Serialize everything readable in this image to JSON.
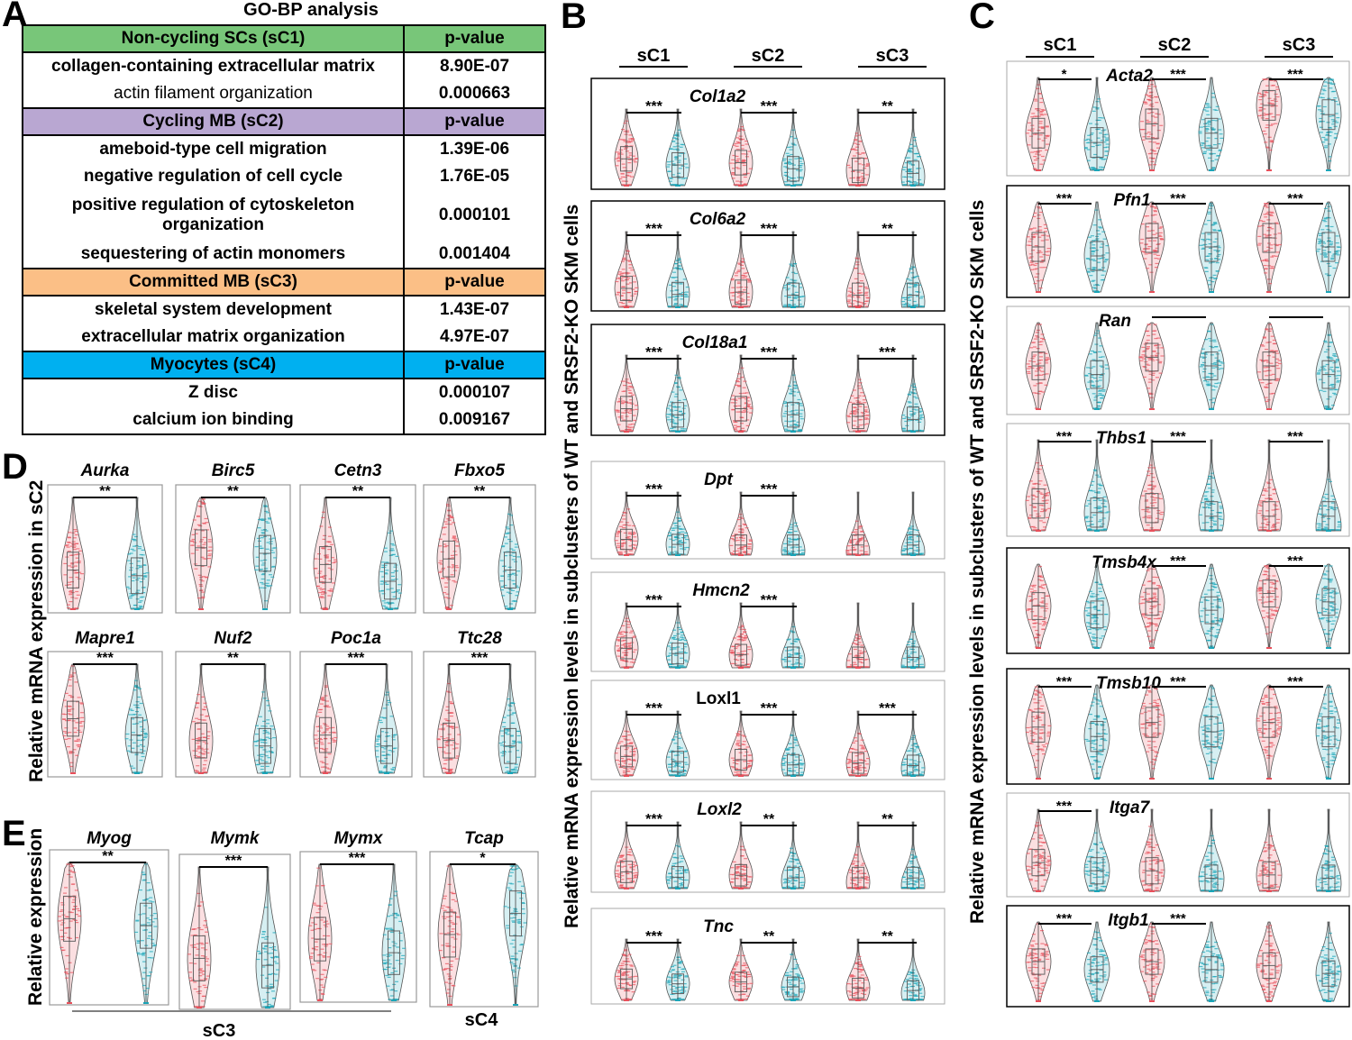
{
  "panel_labels": {
    "a": "A",
    "b": "B",
    "c": "C",
    "d": "D",
    "e": "E"
  },
  "go_table": {
    "title": "GO-BP analysis",
    "sections": [
      {
        "name": "Non-cycling SCs (sC1)",
        "pvalue_header": "p-value",
        "color": "#78c679",
        "rows": [
          {
            "term": "collagen-containing extracellular matrix",
            "p": "8.90E-07"
          },
          {
            "term": "actin filament organization",
            "p": "0.000663"
          }
        ]
      },
      {
        "name": "Cycling MB (sC2)",
        "pvalue_header": "p-value",
        "color": "#b9a7d2",
        "rows": [
          {
            "term": "ameboid-type cell migration",
            "p": "1.39E-06"
          },
          {
            "term": "negative regulation of cell cycle",
            "p": "1.76E-05"
          },
          {
            "term": "positive regulation of cytoskeleton organization",
            "p": "0.000101"
          },
          {
            "term": "sequestering of actin monomers",
            "p": "0.001404"
          }
        ]
      },
      {
        "name": "Committed MB (sC3)",
        "pvalue_header": "p-value",
        "color": "#fbbf86",
        "rows": [
          {
            "term": "skeletal system development",
            "p": "1.43E-07"
          },
          {
            "term": "extracellular matrix organization",
            "p": "4.97E-07"
          }
        ]
      },
      {
        "name": "Myocytes (sC4)",
        "pvalue_header": "p-value",
        "color": "#00b0f0",
        "rows": [
          {
            "term": "Z disc",
            "p": "0.000107"
          },
          {
            "term": "calcium ion binding",
            "p": "0.009167"
          }
        ]
      }
    ]
  },
  "colors": {
    "wt": "#e8505b",
    "ko": "#1aa5b8"
  },
  "chart_data": [
    {
      "panel": "B",
      "type": "violin",
      "ylabel": "Relative mRNA expression levels in subclusters of WT and SRSF2-KO SKM cells",
      "groups": [
        "sC1",
        "sC2",
        "sC3"
      ],
      "series": [
        "WT",
        "SRSF2-KO"
      ],
      "genes": [
        {
          "name": "Col1a2",
          "italic": true,
          "boxed": true,
          "sig": [
            "***",
            "***",
            "**"
          ],
          "level": [
            0.35,
            0.3,
            0.2
          ]
        },
        {
          "name": "Col6a2",
          "italic": true,
          "boxed": true,
          "sig": [
            "***",
            "***",
            "**"
          ],
          "level": [
            0.25,
            0.2,
            0.15
          ]
        },
        {
          "name": "Col18a1",
          "italic": true,
          "boxed": true,
          "sig": [
            "***",
            "***",
            "***"
          ],
          "level": [
            0.3,
            0.3,
            0.2
          ]
        },
        {
          "name": "Dpt",
          "italic": true,
          "boxed": false,
          "sig": [
            "***",
            "***",
            ""
          ],
          "level": [
            0.25,
            0.15,
            0.05
          ]
        },
        {
          "name": "Hmcn2",
          "italic": true,
          "boxed": false,
          "sig": [
            "***",
            "***",
            ""
          ],
          "level": [
            0.3,
            0.2,
            0.05
          ]
        },
        {
          "name": "Loxl1",
          "italic": false,
          "boxed": false,
          "sig": [
            "***",
            "***",
            "***"
          ],
          "level": [
            0.3,
            0.25,
            0.2
          ]
        },
        {
          "name": "Loxl2",
          "italic": true,
          "boxed": false,
          "sig": [
            "***",
            "**",
            "**"
          ],
          "level": [
            0.25,
            0.2,
            0.1
          ]
        },
        {
          "name": "Tnc",
          "italic": true,
          "boxed": false,
          "sig": [
            "***",
            "**",
            "**"
          ],
          "level": [
            0.35,
            0.3,
            0.2
          ]
        }
      ]
    },
    {
      "panel": "C",
      "type": "violin",
      "ylabel": "Relative mRNA expression levels in subclusters of WT and SRSF2-KO SKM cells",
      "groups": [
        "sC1",
        "sC2",
        "sC3"
      ],
      "series": [
        "WT",
        "SRSF2-KO"
      ],
      "genes": [
        {
          "name": "Acta2",
          "italic": true,
          "boxed": false,
          "sig": [
            "*",
            "***",
            "***"
          ],
          "level": [
            0.4,
            0.5,
            0.7
          ]
        },
        {
          "name": "Pfn1",
          "italic": true,
          "boxed": true,
          "sig": [
            "***",
            "***",
            "***"
          ],
          "level": [
            0.5,
            0.6,
            0.6
          ]
        },
        {
          "name": "Ran",
          "italic": true,
          "boxed": false,
          "sig": [
            "",
            "",
            ""
          ],
          "level": [
            0.5,
            0.6,
            0.5
          ]
        },
        {
          "name": "Thbs1",
          "italic": true,
          "boxed": false,
          "sig": [
            "***",
            "***",
            "***"
          ],
          "level": [
            0.3,
            0.25,
            0.15
          ]
        },
        {
          "name": "Tmsb4x",
          "italic": true,
          "boxed": true,
          "sig": [
            "",
            "***",
            "***"
          ],
          "level": [
            0.5,
            0.55,
            0.65
          ]
        },
        {
          "name": "Tmsb10",
          "italic": true,
          "boxed": true,
          "sig": [
            "***",
            "***",
            "***"
          ],
          "level": [
            0.55,
            0.6,
            0.6
          ]
        },
        {
          "name": "Itga7",
          "italic": true,
          "boxed": false,
          "sig": [
            "***",
            "",
            ""
          ],
          "level": [
            0.35,
            0.25,
            0.2
          ]
        },
        {
          "name": "Itgb1",
          "italic": true,
          "boxed": true,
          "sig": [
            "***",
            "***",
            ""
          ],
          "level": [
            0.5,
            0.5,
            0.45
          ]
        }
      ]
    },
    {
      "panel": "D",
      "type": "violin",
      "ylabel": "Relative mRNA expression in sC2",
      "series": [
        "WT",
        "SRSF2-KO"
      ],
      "genes": [
        {
          "name": "Aurka",
          "sig": "**",
          "level": [
            0.35,
            0.3
          ]
        },
        {
          "name": "Birc5",
          "sig": "**",
          "level": [
            0.55,
            0.5
          ]
        },
        {
          "name": "Cetn3",
          "sig": "**",
          "level": [
            0.4,
            0.25
          ]
        },
        {
          "name": "Fbxo5",
          "sig": "**",
          "level": [
            0.45,
            0.35
          ]
        },
        {
          "name": "Mapre1",
          "sig": "***",
          "level": [
            0.5,
            0.35
          ]
        },
        {
          "name": "Nuf2",
          "sig": "**",
          "level": [
            0.3,
            0.25
          ]
        },
        {
          "name": "Poc1a",
          "sig": "***",
          "level": [
            0.35,
            0.25
          ]
        },
        {
          "name": "Ttc28",
          "sig": "***",
          "level": [
            0.3,
            0.25
          ]
        }
      ]
    },
    {
      "panel": "E",
      "type": "box",
      "ylabel": "Relative expression",
      "series": [
        "WT",
        "SRSF2-KO"
      ],
      "genes": [
        {
          "name": "Myog",
          "cluster": "sC3",
          "sig": "**",
          "level": [
            0.6,
            0.55
          ]
        },
        {
          "name": "Mymk",
          "cluster": "sC3",
          "sig": "***",
          "level": [
            0.35,
            0.3
          ]
        },
        {
          "name": "Mymx",
          "cluster": "sC3",
          "sig": "***",
          "level": [
            0.45,
            0.35
          ]
        },
        {
          "name": "Tcap",
          "cluster": "sC4",
          "sig": "*",
          "level": [
            0.5,
            0.65
          ]
        }
      ],
      "cluster_labels": [
        "sC3",
        "sC4"
      ]
    }
  ]
}
